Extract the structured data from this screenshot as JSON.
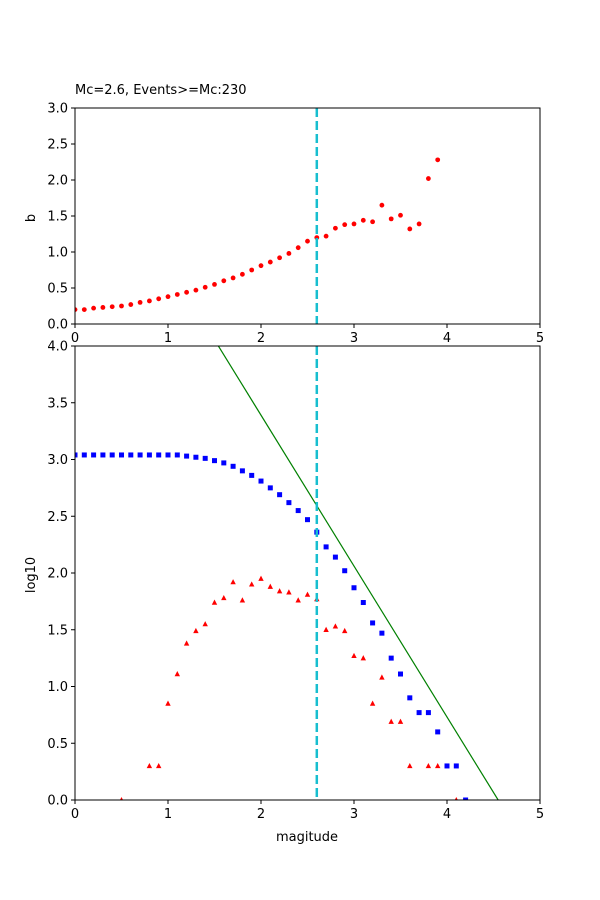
{
  "chart_data": [
    {
      "type": "scatter",
      "title": "Mc=2.6, Events>=Mc:230",
      "xlabel": "",
      "ylabel": "b",
      "xlim": [
        0,
        5
      ],
      "ylim": [
        0,
        3
      ],
      "xticks": [
        "0",
        "1",
        "2",
        "3",
        "4",
        "5"
      ],
      "yticks": [
        "0.0",
        "0.5",
        "1.0",
        "1.5",
        "2.0",
        "2.5",
        "3.0"
      ],
      "mc_line": {
        "x": 2.6,
        "color": "#17becf",
        "style": "dashed"
      },
      "series": [
        {
          "marker": "circle",
          "color": "#ff0000",
          "points": [
            [
              0.0,
              0.2
            ],
            [
              0.1,
              0.2
            ],
            [
              0.2,
              0.22
            ],
            [
              0.3,
              0.23
            ],
            [
              0.4,
              0.24
            ],
            [
              0.5,
              0.25
            ],
            [
              0.6,
              0.27
            ],
            [
              0.7,
              0.3
            ],
            [
              0.8,
              0.32
            ],
            [
              0.9,
              0.35
            ],
            [
              1.0,
              0.38
            ],
            [
              1.1,
              0.41
            ],
            [
              1.2,
              0.44
            ],
            [
              1.3,
              0.47
            ],
            [
              1.4,
              0.51
            ],
            [
              1.5,
              0.55
            ],
            [
              1.6,
              0.6
            ],
            [
              1.7,
              0.64
            ],
            [
              1.8,
              0.69
            ],
            [
              1.9,
              0.75
            ],
            [
              2.0,
              0.81
            ],
            [
              2.1,
              0.86
            ],
            [
              2.2,
              0.92
            ],
            [
              2.3,
              0.98
            ],
            [
              2.4,
              1.06
            ],
            [
              2.5,
              1.15
            ],
            [
              2.6,
              1.2
            ],
            [
              2.7,
              1.22
            ],
            [
              2.8,
              1.33
            ],
            [
              2.9,
              1.38
            ],
            [
              3.0,
              1.39
            ],
            [
              3.1,
              1.44
            ],
            [
              3.2,
              1.42
            ],
            [
              3.3,
              1.65
            ],
            [
              3.4,
              1.46
            ],
            [
              3.5,
              1.51
            ],
            [
              3.6,
              1.32
            ],
            [
              3.7,
              1.39
            ],
            [
              3.8,
              2.02
            ],
            [
              3.9,
              2.28
            ]
          ]
        }
      ]
    },
    {
      "type": "scatter",
      "title": "",
      "xlabel": "magitude",
      "ylabel": "log10",
      "xlim": [
        0,
        5
      ],
      "ylim": [
        0,
        4
      ],
      "xticks": [
        "0",
        "1",
        "2",
        "3",
        "4",
        "5"
      ],
      "yticks": [
        "0.0",
        "0.5",
        "1.0",
        "1.5",
        "2.0",
        "2.5",
        "3.0",
        "3.5",
        "4.0"
      ],
      "mc_line": {
        "x": 2.6,
        "color": "#17becf",
        "style": "dashed"
      },
      "fit_line": {
        "color": "#008000",
        "points": [
          [
            0.0,
            6.05
          ],
          [
            4.55,
            0.0
          ]
        ]
      },
      "series": [
        {
          "marker": "square",
          "color": "#0000ff",
          "points": [
            [
              0.0,
              3.04
            ],
            [
              0.1,
              3.04
            ],
            [
              0.2,
              3.04
            ],
            [
              0.3,
              3.04
            ],
            [
              0.4,
              3.04
            ],
            [
              0.5,
              3.04
            ],
            [
              0.6,
              3.04
            ],
            [
              0.7,
              3.04
            ],
            [
              0.8,
              3.04
            ],
            [
              0.9,
              3.04
            ],
            [
              1.0,
              3.04
            ],
            [
              1.1,
              3.04
            ],
            [
              1.2,
              3.03
            ],
            [
              1.3,
              3.02
            ],
            [
              1.4,
              3.01
            ],
            [
              1.5,
              2.99
            ],
            [
              1.6,
              2.97
            ],
            [
              1.7,
              2.94
            ],
            [
              1.8,
              2.9
            ],
            [
              1.9,
              2.86
            ],
            [
              2.0,
              2.81
            ],
            [
              2.1,
              2.75
            ],
            [
              2.2,
              2.69
            ],
            [
              2.3,
              2.62
            ],
            [
              2.4,
              2.55
            ],
            [
              2.5,
              2.47
            ],
            [
              2.6,
              2.36
            ],
            [
              2.7,
              2.23
            ],
            [
              2.8,
              2.14
            ],
            [
              2.9,
              2.02
            ],
            [
              3.0,
              1.87
            ],
            [
              3.1,
              1.74
            ],
            [
              3.2,
              1.56
            ],
            [
              3.3,
              1.47
            ],
            [
              3.4,
              1.25
            ],
            [
              3.5,
              1.11
            ],
            [
              3.6,
              0.9
            ],
            [
              3.7,
              0.77
            ],
            [
              3.8,
              0.77
            ],
            [
              3.9,
              0.6
            ],
            [
              4.0,
              0.3
            ],
            [
              4.1,
              0.3
            ],
            [
              4.2,
              0.0
            ]
          ]
        },
        {
          "marker": "triangle",
          "color": "#ff0000",
          "points": [
            [
              0.5,
              0.0
            ],
            [
              0.8,
              0.3
            ],
            [
              0.9,
              0.3
            ],
            [
              1.0,
              0.85
            ],
            [
              1.1,
              1.11
            ],
            [
              1.2,
              1.38
            ],
            [
              1.3,
              1.49
            ],
            [
              1.4,
              1.55
            ],
            [
              1.5,
              1.74
            ],
            [
              1.6,
              1.78
            ],
            [
              1.7,
              1.92
            ],
            [
              1.8,
              1.76
            ],
            [
              1.9,
              1.9
            ],
            [
              2.0,
              1.95
            ],
            [
              2.1,
              1.88
            ],
            [
              2.2,
              1.84
            ],
            [
              2.3,
              1.83
            ],
            [
              2.4,
              1.76
            ],
            [
              2.5,
              1.81
            ],
            [
              2.6,
              1.77
            ],
            [
              2.7,
              1.5
            ],
            [
              2.8,
              1.53
            ],
            [
              2.9,
              1.49
            ],
            [
              3.0,
              1.27
            ],
            [
              3.1,
              1.25
            ],
            [
              3.2,
              0.85
            ],
            [
              3.3,
              1.08
            ],
            [
              3.4,
              0.69
            ],
            [
              3.5,
              0.69
            ],
            [
              3.6,
              0.3
            ],
            [
              3.8,
              0.3
            ],
            [
              3.9,
              0.3
            ],
            [
              4.1,
              0.0
            ]
          ]
        }
      ]
    }
  ]
}
